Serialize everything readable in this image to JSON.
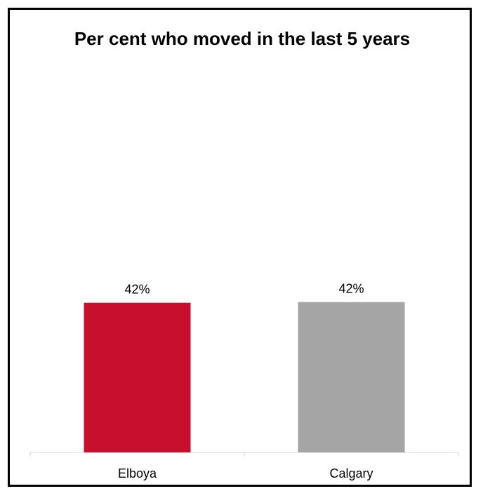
{
  "chart_data": {
    "type": "bar",
    "title": "Per cent who moved in the last 5 years",
    "categories": [
      "Elboya",
      "Calgary"
    ],
    "values": [
      42,
      42.2
    ],
    "data_labels": [
      "42%",
      "42%"
    ],
    "colors": [
      "#c8102e",
      "#a5a5a5"
    ],
    "ylim": [
      0,
      100
    ],
    "grid": false,
    "legend": "none"
  }
}
